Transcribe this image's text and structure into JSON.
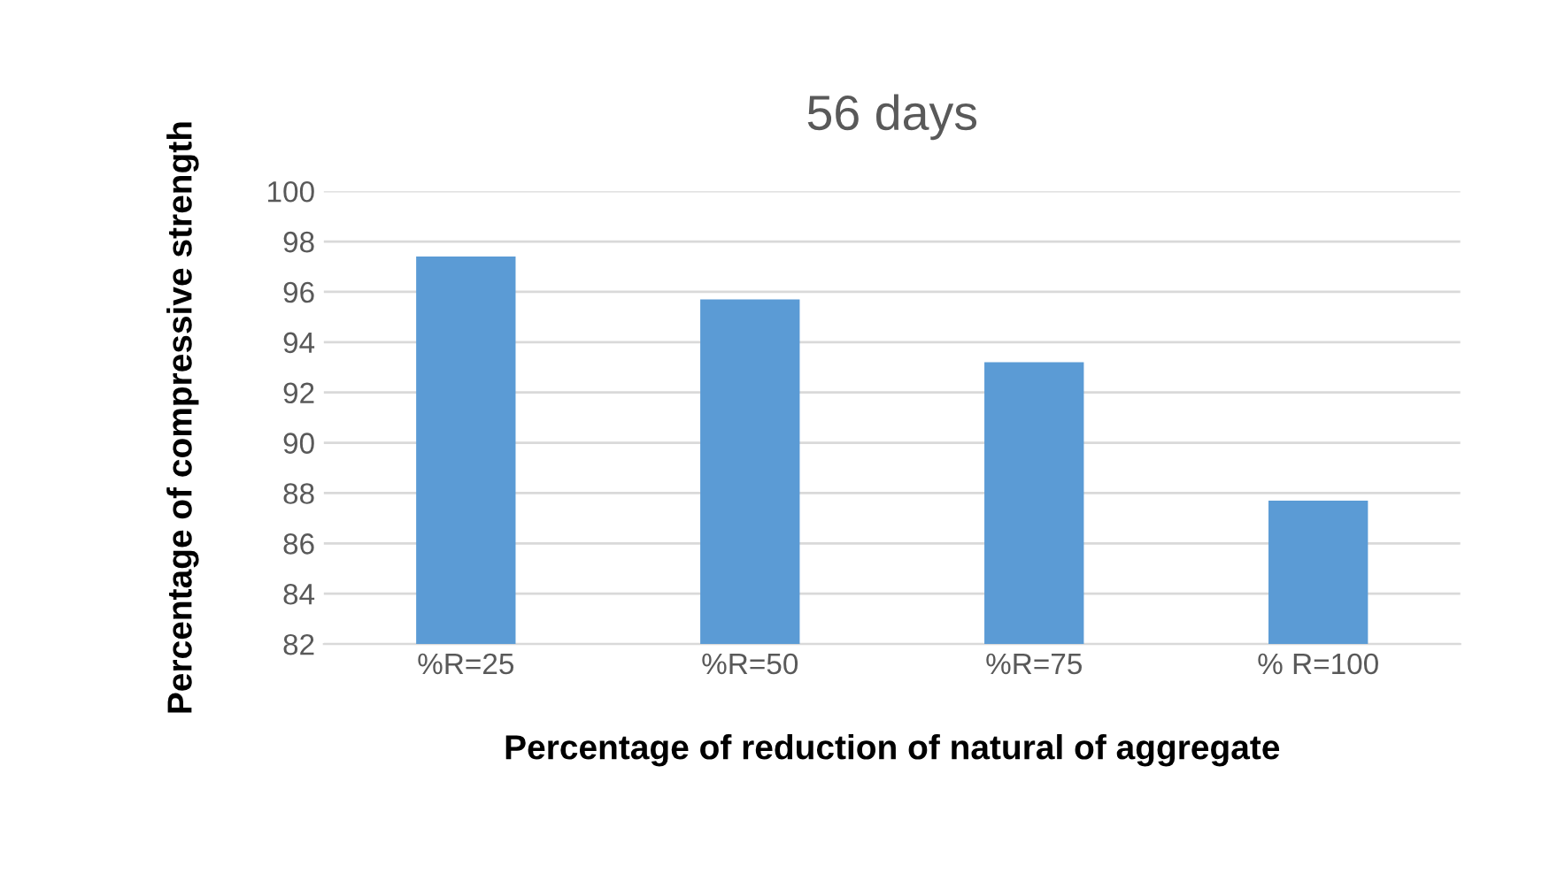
{
  "chart_data": {
    "type": "bar",
    "title": "56 days",
    "xlabel": "Percentage of reduction of natural of aggregate",
    "ylabel": "Percentage of compressive strength",
    "categories": [
      "%R=25",
      "%R=50",
      "%R=75",
      "% R=100"
    ],
    "values": [
      97.4,
      95.7,
      93.2,
      87.7
    ],
    "color": "#5b9bd5",
    "ylim": [
      82,
      100
    ],
    "yticks": [
      82,
      84,
      86,
      88,
      90,
      92,
      94,
      96,
      98,
      100
    ],
    "grid": "y"
  }
}
